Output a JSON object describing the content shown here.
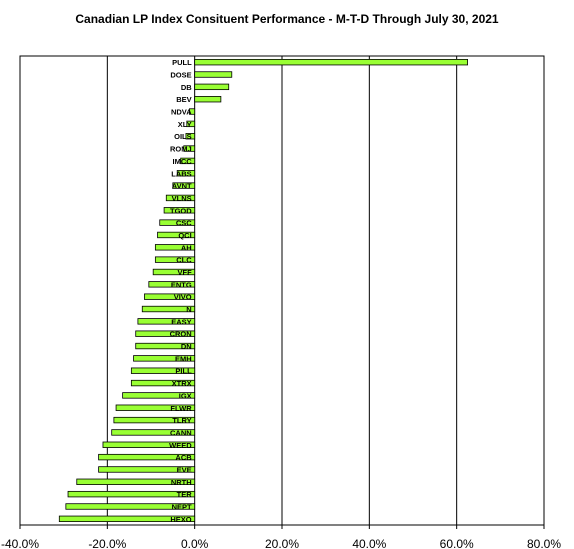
{
  "chart_data": {
    "type": "bar",
    "orientation": "horizontal",
    "title": "Canadian LP Index Consituent Performance -  M-T-D Through July 30, 2021",
    "xlabel": "",
    "ylabel": "",
    "xlim": [
      -40,
      80
    ],
    "xticks": [
      -40,
      -20,
      0,
      20,
      40,
      60,
      80
    ],
    "xtick_labels": [
      "-40.0%",
      "-20.0%",
      "0.0%",
      "20.0%",
      "40.0%",
      "60.0%",
      "80.0%"
    ],
    "grid": "vertical major gridlines",
    "bar_color": "#99ff33",
    "categories": [
      "PULL",
      "DOSE",
      "DB",
      "BEV",
      "NDVA",
      "XLY",
      "OILS",
      "ROMJ",
      "IMCC",
      "LABS",
      "AVNT",
      "VLNS",
      "TGOD",
      "CSC",
      "QCI",
      "AH",
      "CLC",
      "VFF",
      "ENTG",
      "VIVO",
      "N",
      "EASY",
      "CRON",
      "DN",
      "EMH",
      "PILL",
      "XTRX",
      "IGX",
      "FLWR",
      "TLRY",
      "CANN",
      "WEED",
      "ACB",
      "EVE",
      "NRTH",
      "TER",
      "NEPT",
      "HEXO"
    ],
    "values": [
      62.5,
      8.5,
      7.8,
      6.0,
      -1.2,
      -1.8,
      -2.0,
      -2.5,
      -3.2,
      -4.0,
      -5.0,
      -6.5,
      -7.0,
      -8.0,
      -8.5,
      -9.0,
      -9.0,
      -9.5,
      -10.5,
      -11.5,
      -12.0,
      -13.0,
      -13.5,
      -13.5,
      -14.0,
      -14.5,
      -14.5,
      -16.5,
      -18.0,
      -18.5,
      -19.0,
      -21.0,
      -22.0,
      -22.0,
      -27.0,
      -29.0,
      -29.5,
      -31.0
    ]
  }
}
